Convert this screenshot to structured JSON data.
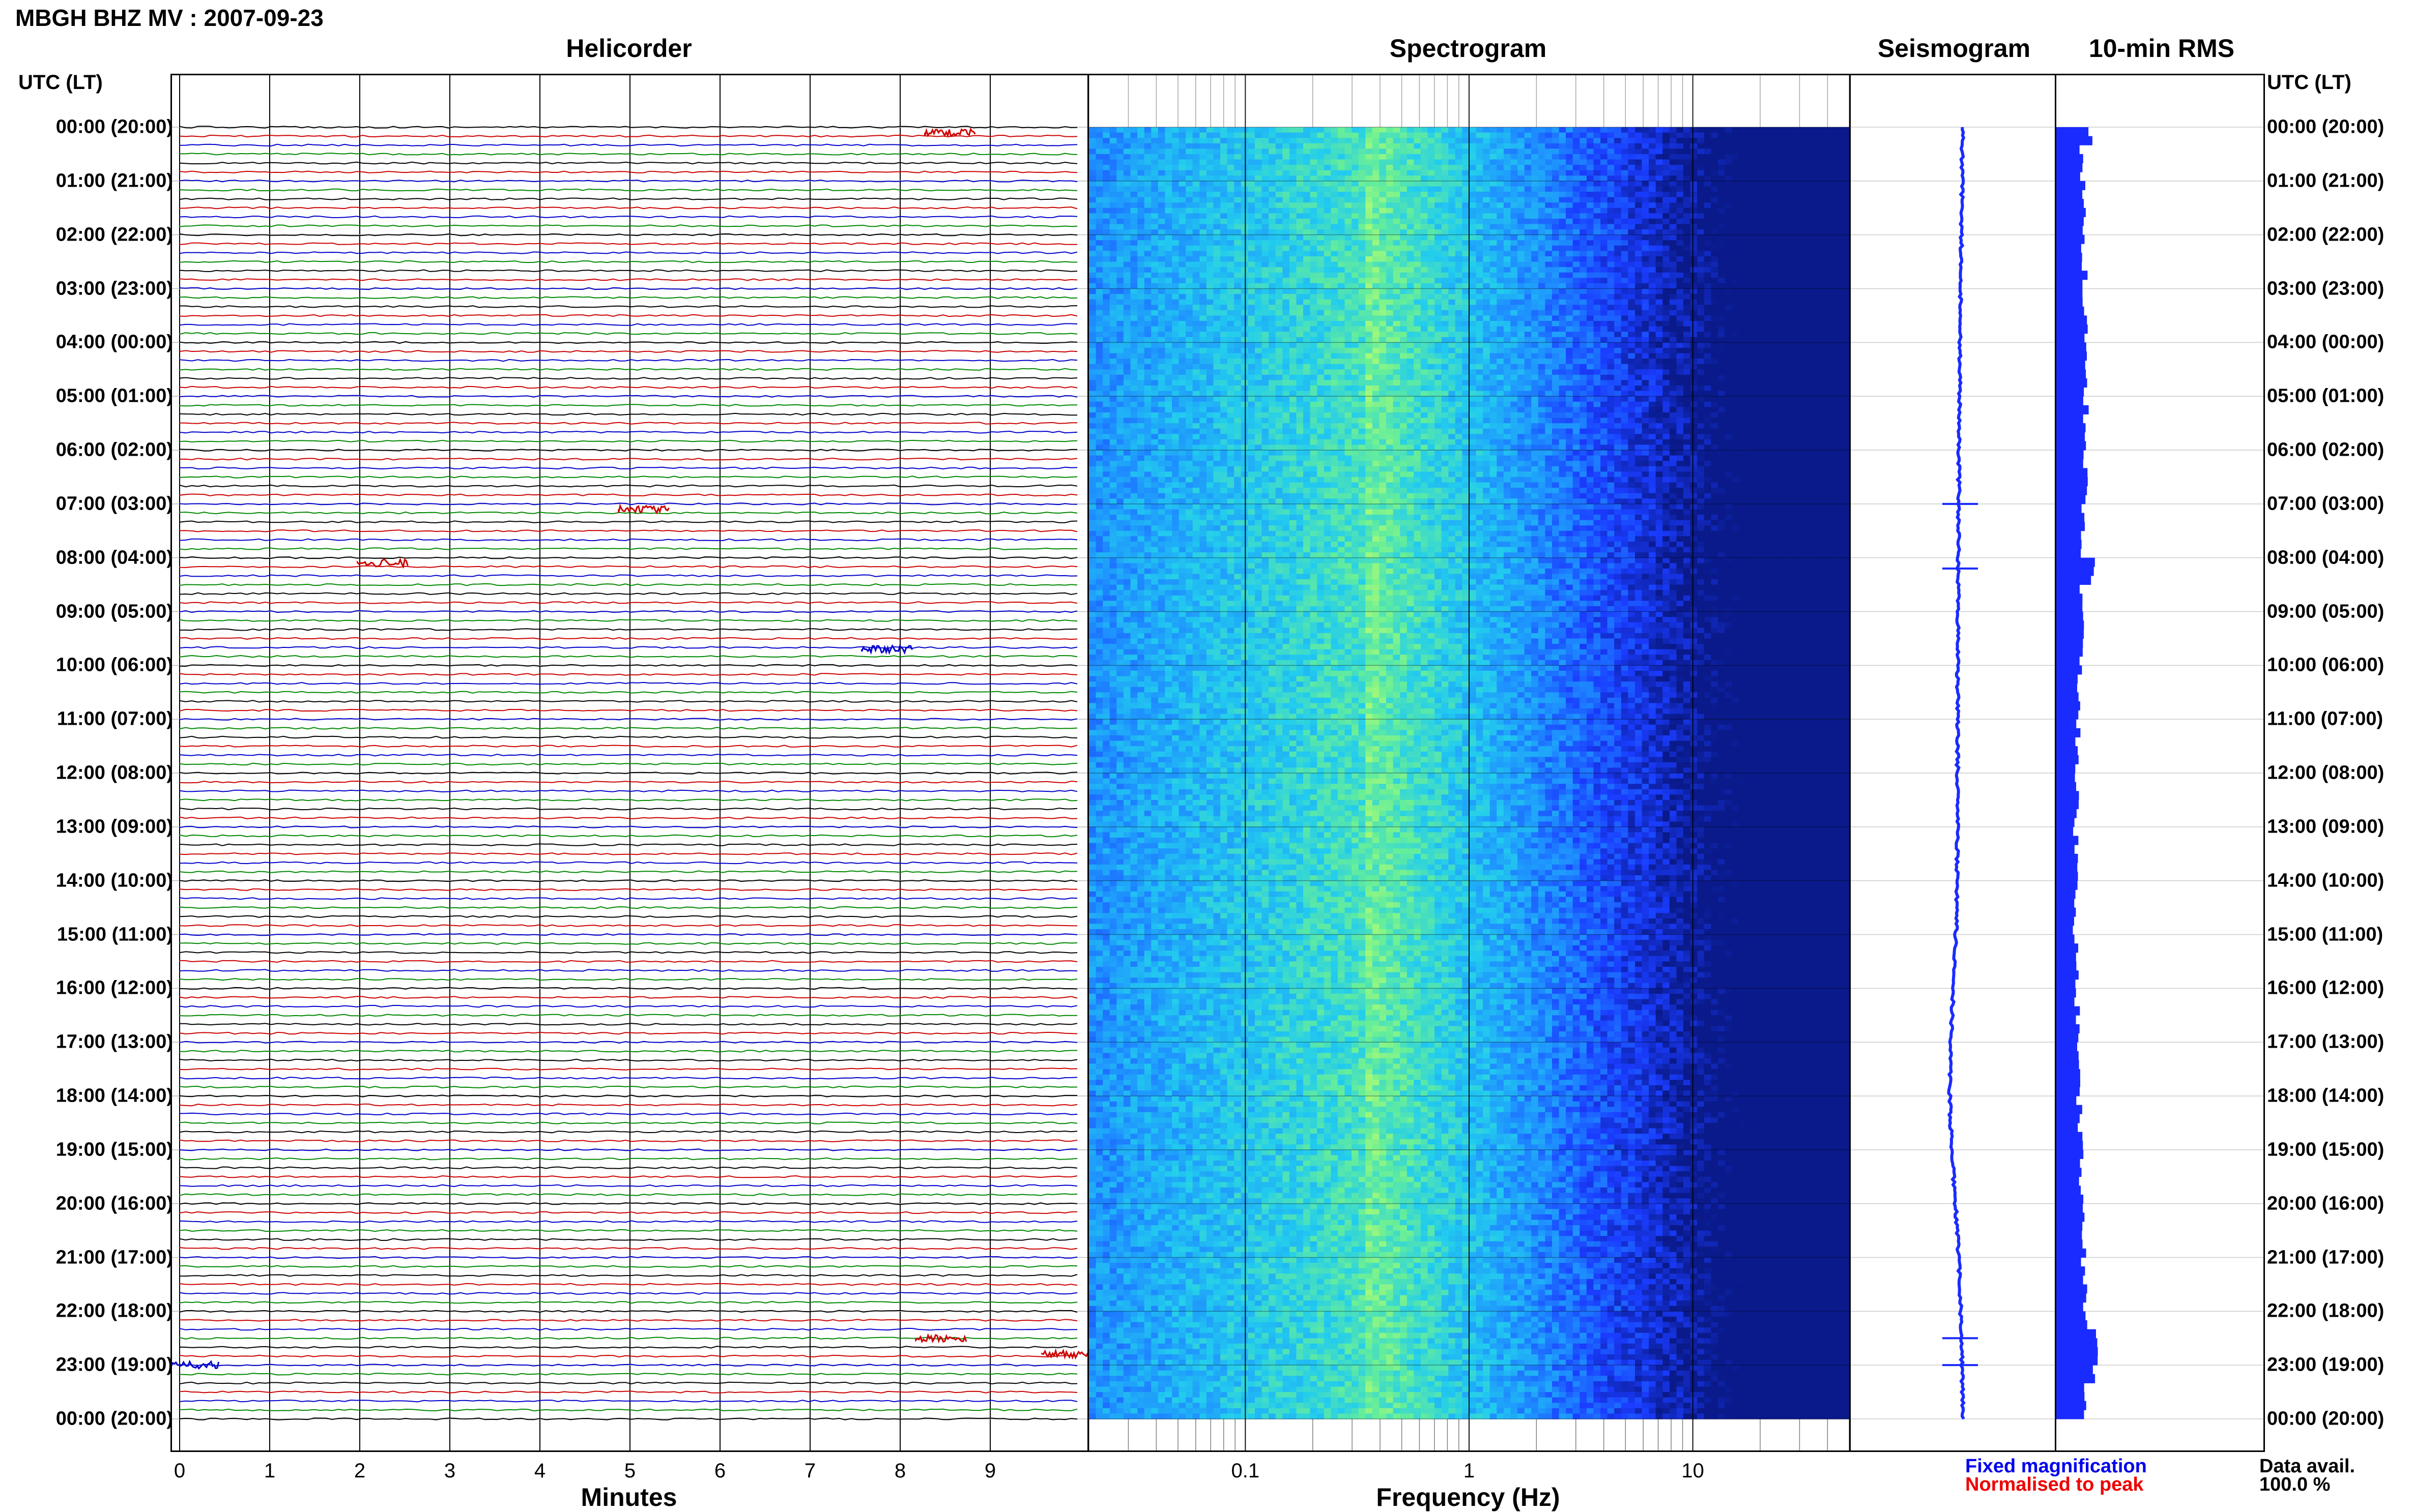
{
  "title": "MBGH BHZ MV : 2007-09-23",
  "panels": {
    "helicorder": "Helicorder",
    "spectrogram": "Spectrogram",
    "seismogram": "Seismogram",
    "rms": "10-min RMS"
  },
  "time_axis_label": "UTC (LT)",
  "legend": {
    "fixed": "Fixed magnification",
    "normalised": "Normalised to peak",
    "fixed_color": "#0000ee",
    "normalised_color": "#ee0000"
  },
  "data_avail_label": "Data avail.",
  "data_avail_value": "100.0 %",
  "chart_data": [
    {
      "type": "line",
      "title": "Helicorder",
      "xlabel": "Minutes",
      "x_ticks": [
        "0",
        "1",
        "2",
        "3",
        "4",
        "5",
        "6",
        "7",
        "8",
        "9"
      ],
      "xlim": [
        0,
        10
      ],
      "ylabel": "UTC (LT)",
      "y_ticks": [
        "00:00 (20:00)",
        "01:00 (21:00)",
        "02:00 (22:00)",
        "03:00 (23:00)",
        "04:00 (00:00)",
        "05:00 (01:00)",
        "06:00 (02:00)",
        "07:00 (03:00)",
        "08:00 (04:00)",
        "09:00 (05:00)",
        "10:00 (06:00)",
        "11:00 (07:00)",
        "12:00 (08:00)",
        "13:00 (09:00)",
        "14:00 (10:00)",
        "15:00 (11:00)",
        "16:00 (12:00)",
        "17:00 (13:00)",
        "18:00 (14:00)",
        "19:00 (15:00)",
        "20:00 (16:00)",
        "21:00 (17:00)",
        "22:00 (18:00)",
        "23:00 (19:00)",
        "00:00 (20:00)"
      ],
      "trace_colors": [
        "#000000",
        "#cc0000",
        "#0000cc",
        "#008800"
      ],
      "traces_per_hour": 6,
      "events": [
        {
          "hour": 0.1,
          "minute": 8.5,
          "color": "#cc0000"
        },
        {
          "hour": 7.1,
          "minute": 5.1,
          "color": "#cc0000"
        },
        {
          "hour": 8.1,
          "minute": 2.2,
          "color": "#cc0000"
        },
        {
          "hour": 9.7,
          "minute": 7.8,
          "color": "#0000cc"
        },
        {
          "hour": 22.5,
          "minute": 8.4,
          "color": "#cc0000"
        },
        {
          "hour": 23.0,
          "minute": 0.1,
          "color": "#0000cc"
        },
        {
          "hour": 22.8,
          "minute": 9.8,
          "color": "#cc0000"
        }
      ],
      "grid": true
    },
    {
      "type": "heatmap",
      "title": "Spectrogram",
      "xlabel": "Frequency (Hz)",
      "x_scale": "log",
      "x_ticks": [
        "0.1",
        "1",
        "10"
      ],
      "xlim": [
        0.02,
        50
      ],
      "colormap": [
        "#0a1a8a",
        "#1a3cff",
        "#1e90ff",
        "#22ccee",
        "#66ee99",
        "#ccff66"
      ],
      "peak_frequency_hz": 0.35
    },
    {
      "type": "line",
      "title": "Seismogram",
      "color": "#1a2bff",
      "spikes_at_hour": [
        7.0,
        8.2,
        22.5,
        23.0
      ]
    },
    {
      "type": "bar",
      "title": "10-min RMS",
      "color": "#1a2bff",
      "orientation": "horizontal",
      "note_peaks_at_hour": [
        0.1,
        8.2,
        22.5,
        23.0
      ]
    }
  ]
}
